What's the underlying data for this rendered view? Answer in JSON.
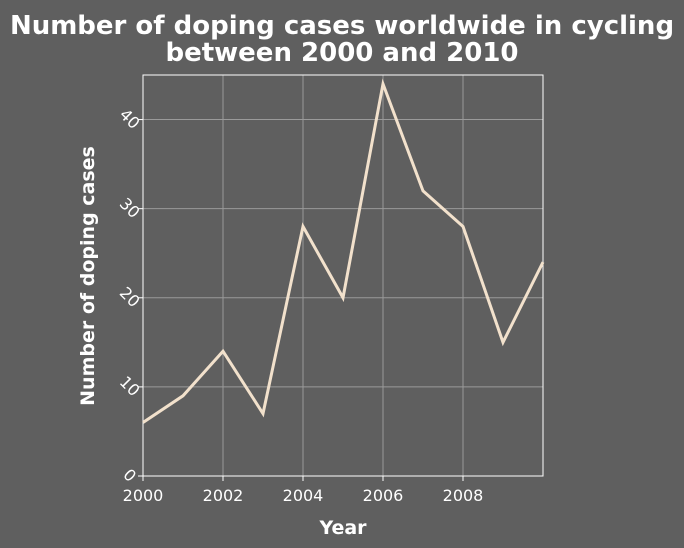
{
  "chart_data": {
    "type": "line",
    "title": "Number of doping cases worldwide in cycling between 2000 and 2010",
    "title_lines": [
      "Number of doping cases worldwide in cycling",
      "between 2000 and 2010"
    ],
    "xlabel": "Year",
    "ylabel": "Number of doping cases",
    "x": [
      2000,
      2001,
      2002,
      2003,
      2004,
      2005,
      2006,
      2007,
      2008,
      2009,
      2010
    ],
    "values": [
      6,
      9,
      14,
      7,
      28,
      20,
      44,
      32,
      28,
      15,
      24
    ],
    "xlim": [
      2000,
      2010
    ],
    "ylim": [
      0,
      45
    ],
    "x_ticks": [
      2000,
      2002,
      2004,
      2006,
      2008
    ],
    "x_tick_labels": [
      "2000",
      "2002",
      "2004",
      "2006",
      "2008"
    ],
    "y_ticks": [
      0,
      10,
      20,
      30,
      40
    ],
    "y_tick_labels": [
      "0",
      "10",
      "20",
      "30",
      "40"
    ],
    "grid": true,
    "line_color": "#f2e1cc",
    "grid_color": "#9a9a9a",
    "background_color": "#5f5f5f",
    "frame_color": "#ffffff"
  }
}
